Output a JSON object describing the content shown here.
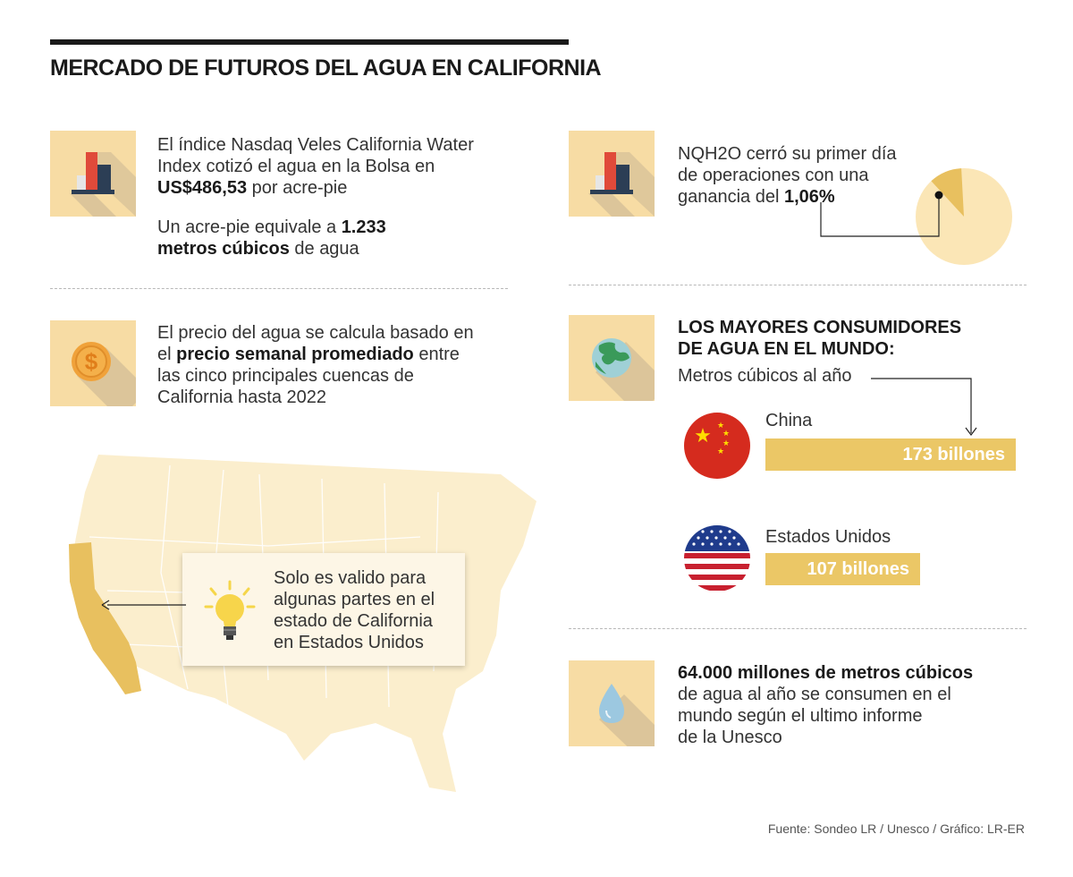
{
  "title": "MERCADO DE FUTUROS DEL AGUA EN CALIFORNIA",
  "block1": {
    "line1": "El índice Nasdaq Veles California Water",
    "line2": "Index cotizó el agua en la Bolsa en",
    "price": "US$486,53",
    "price_suffix": " por acre-pie",
    "line4": "Un acre-pie equivale a ",
    "volume": "1.233",
    "unit_bold": "metros cúbicos",
    "unit_suffix": " de agua"
  },
  "block2": {
    "line1": "El precio del agua se calcula basado en",
    "prefix": "el ",
    "bold": "precio semanal promediado",
    "suffix": " entre",
    "line3": "las cinco principales cuencas de",
    "line4": "California hasta 2022"
  },
  "callout": {
    "line1": "Solo es valido para",
    "line2": "algunas partes en el",
    "line3": "estado de California",
    "line4": "en Estados Unidos"
  },
  "block3": {
    "line1": "NQH2O cerró su primer día",
    "line2": "de operaciones con una",
    "line3": "ganancia del ",
    "gain": "1,06%",
    "gain_percent": 1.06
  },
  "consumers": {
    "heading1": "LOS MAYORES CONSUMIDORES",
    "heading2": "DE AGUA EN EL MUNDO:",
    "subtitle": "Metros cúbicos al año",
    "items": [
      {
        "country": "China",
        "label": "173 billones",
        "value": 173
      },
      {
        "country": "Estados Unidos",
        "label": "107 billones",
        "value": 107
      }
    ]
  },
  "block4": {
    "bold": "64.000 millones de metros cúbicos",
    "line2": "de agua al año se consumen en el",
    "line3": "mundo según el ultimo informe",
    "line4": "de la Unesco"
  },
  "source": "Fuente: Sondeo LR / Unesco / Gráfico: LR-ER",
  "colors": {
    "tile": "#f7dca4",
    "bar": "#ebc766",
    "california": "#e8c05f",
    "map": "#fbeecd",
    "shadow": "#dcc59a"
  },
  "icons": [
    "bar-chart-icon",
    "dollar-coin-icon",
    "globe-icon",
    "water-drop-icon",
    "lightbulb-icon",
    "china-flag-icon",
    "usa-flag-icon"
  ]
}
